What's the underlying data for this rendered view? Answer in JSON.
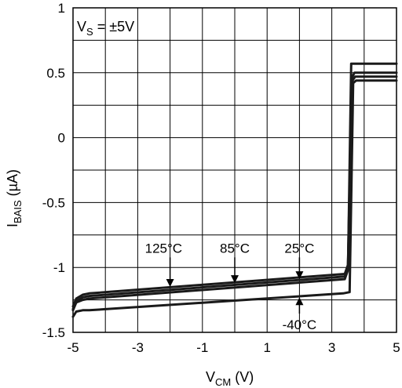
{
  "chart_data": {
    "type": "line",
    "xlabel_main": "V",
    "xlabel_sub": "CM",
    "xlabel_unit": " (V)",
    "ylabel_main": "I",
    "ylabel_sub": "BAIS",
    "ylabel_unit": " (µA)",
    "xlim": [
      -5,
      5
    ],
    "ylim": [
      -1.5,
      1
    ],
    "xticks": [
      -5,
      -3,
      -1,
      1,
      3,
      5
    ],
    "yticks": [
      1,
      0.5,
      0,
      -0.5,
      -1,
      -1.5
    ],
    "xtick_labels": [
      "-5",
      "-3",
      "-1",
      "1",
      "3",
      "5"
    ],
    "ytick_labels": [
      "1",
      "0.5",
      "0",
      "-0.5",
      "-1",
      "-1.5"
    ],
    "grid": true,
    "annotation_condition": {
      "main": "V",
      "sub": "S",
      "rest": " = ±5V"
    },
    "series": [
      {
        "name": "125°C",
        "points": [
          [
            -5,
            -1.3
          ],
          [
            -4.9,
            -1.24
          ],
          [
            -4.7,
            -1.21
          ],
          [
            -4.5,
            -1.2
          ],
          [
            3.4,
            -1.05
          ],
          [
            3.5,
            -0.98
          ],
          [
            3.62,
            0.46
          ],
          [
            3.7,
            0.5
          ],
          [
            5,
            0.5
          ]
        ]
      },
      {
        "name": "85°C",
        "points": [
          [
            -5,
            -1.32
          ],
          [
            -4.9,
            -1.26
          ],
          [
            -4.7,
            -1.23
          ],
          [
            -4.5,
            -1.22
          ],
          [
            3.4,
            -1.07
          ],
          [
            3.5,
            -1.0
          ],
          [
            3.64,
            0.44
          ],
          [
            3.72,
            0.47
          ],
          [
            5,
            0.47
          ]
        ]
      },
      {
        "name": "25°C",
        "points": [
          [
            -5,
            -1.33
          ],
          [
            -4.9,
            -1.27
          ],
          [
            -4.7,
            -1.25
          ],
          [
            -4.5,
            -1.24
          ],
          [
            3.4,
            -1.09
          ],
          [
            3.5,
            -1.02
          ],
          [
            3.6,
            0.57
          ],
          [
            5,
            0.57
          ]
        ]
      },
      {
        "name": "-40°C",
        "points": [
          [
            -5,
            -1.38
          ],
          [
            -4.9,
            -1.34
          ],
          [
            -4.7,
            -1.33
          ],
          [
            -4.5,
            -1.33
          ],
          [
            3.35,
            -1.2
          ],
          [
            3.55,
            -1.19
          ],
          [
            3.66,
            0.42
          ],
          [
            3.75,
            0.44
          ],
          [
            5,
            0.44
          ]
        ]
      }
    ],
    "labels": [
      {
        "text": "125°C",
        "at": [
          -2.2,
          -0.85
        ],
        "arrow_to": [
          -2.0,
          -1.15
        ]
      },
      {
        "text": "85°C",
        "at": [
          0.0,
          -0.85
        ],
        "arrow_to": [
          0.0,
          -1.12
        ]
      },
      {
        "text": "25°C",
        "at": [
          2.0,
          -0.85
        ],
        "arrow_to": [
          2.0,
          -1.09
        ]
      },
      {
        "text": "-40°C",
        "at": [
          2.0,
          -1.44
        ],
        "arrow_to": [
          2.0,
          -1.23
        ]
      }
    ]
  }
}
